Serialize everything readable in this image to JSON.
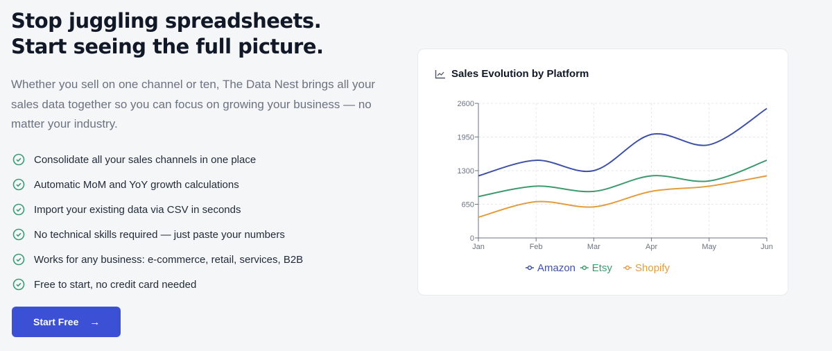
{
  "hero": {
    "title_line1": "Stop juggling spreadsheets.",
    "title_line2": "Start seeing the full picture.",
    "lead": "Whether you sell on one channel or ten, The Data Nest brings all your sales data together so you can focus on growing your business — no matter your industry.",
    "features": [
      "Consolidate all your sales channels in one place",
      "Automatic MoM and YoY growth calculations",
      "Import your existing data via CSV in seconds",
      "No technical skills required — just paste your numbers",
      "Works for any business: e-commerce, retail, services, B2B",
      "Free to start, no credit card needed"
    ],
    "cta_label": "Start Free",
    "cta_icon": "arrow-right-icon",
    "feature_icon": "check-circle-icon"
  },
  "colors": {
    "accent": "#3b50d4",
    "check": "#3d9a73"
  },
  "chart_data": {
    "type": "line",
    "title": "Sales Evolution by Platform",
    "title_icon": "line-chart-icon",
    "categories": [
      "Jan",
      "Feb",
      "Mar",
      "Apr",
      "May",
      "Jun"
    ],
    "yticks": [
      0,
      650,
      1300,
      1950,
      2600
    ],
    "ylim": [
      0,
      2600
    ],
    "grid": true,
    "legend": "bottom",
    "smooth": true,
    "series": [
      {
        "name": "Amazon",
        "color": "#3f51a5",
        "values": [
          1200,
          1500,
          1300,
          2000,
          1800,
          2500
        ]
      },
      {
        "name": "Etsy",
        "color": "#3d9a6e",
        "values": [
          800,
          1000,
          900,
          1200,
          1100,
          1500
        ]
      },
      {
        "name": "Shopify",
        "color": "#e29d3e",
        "values": [
          400,
          700,
          600,
          900,
          1000,
          1200
        ]
      }
    ]
  }
}
